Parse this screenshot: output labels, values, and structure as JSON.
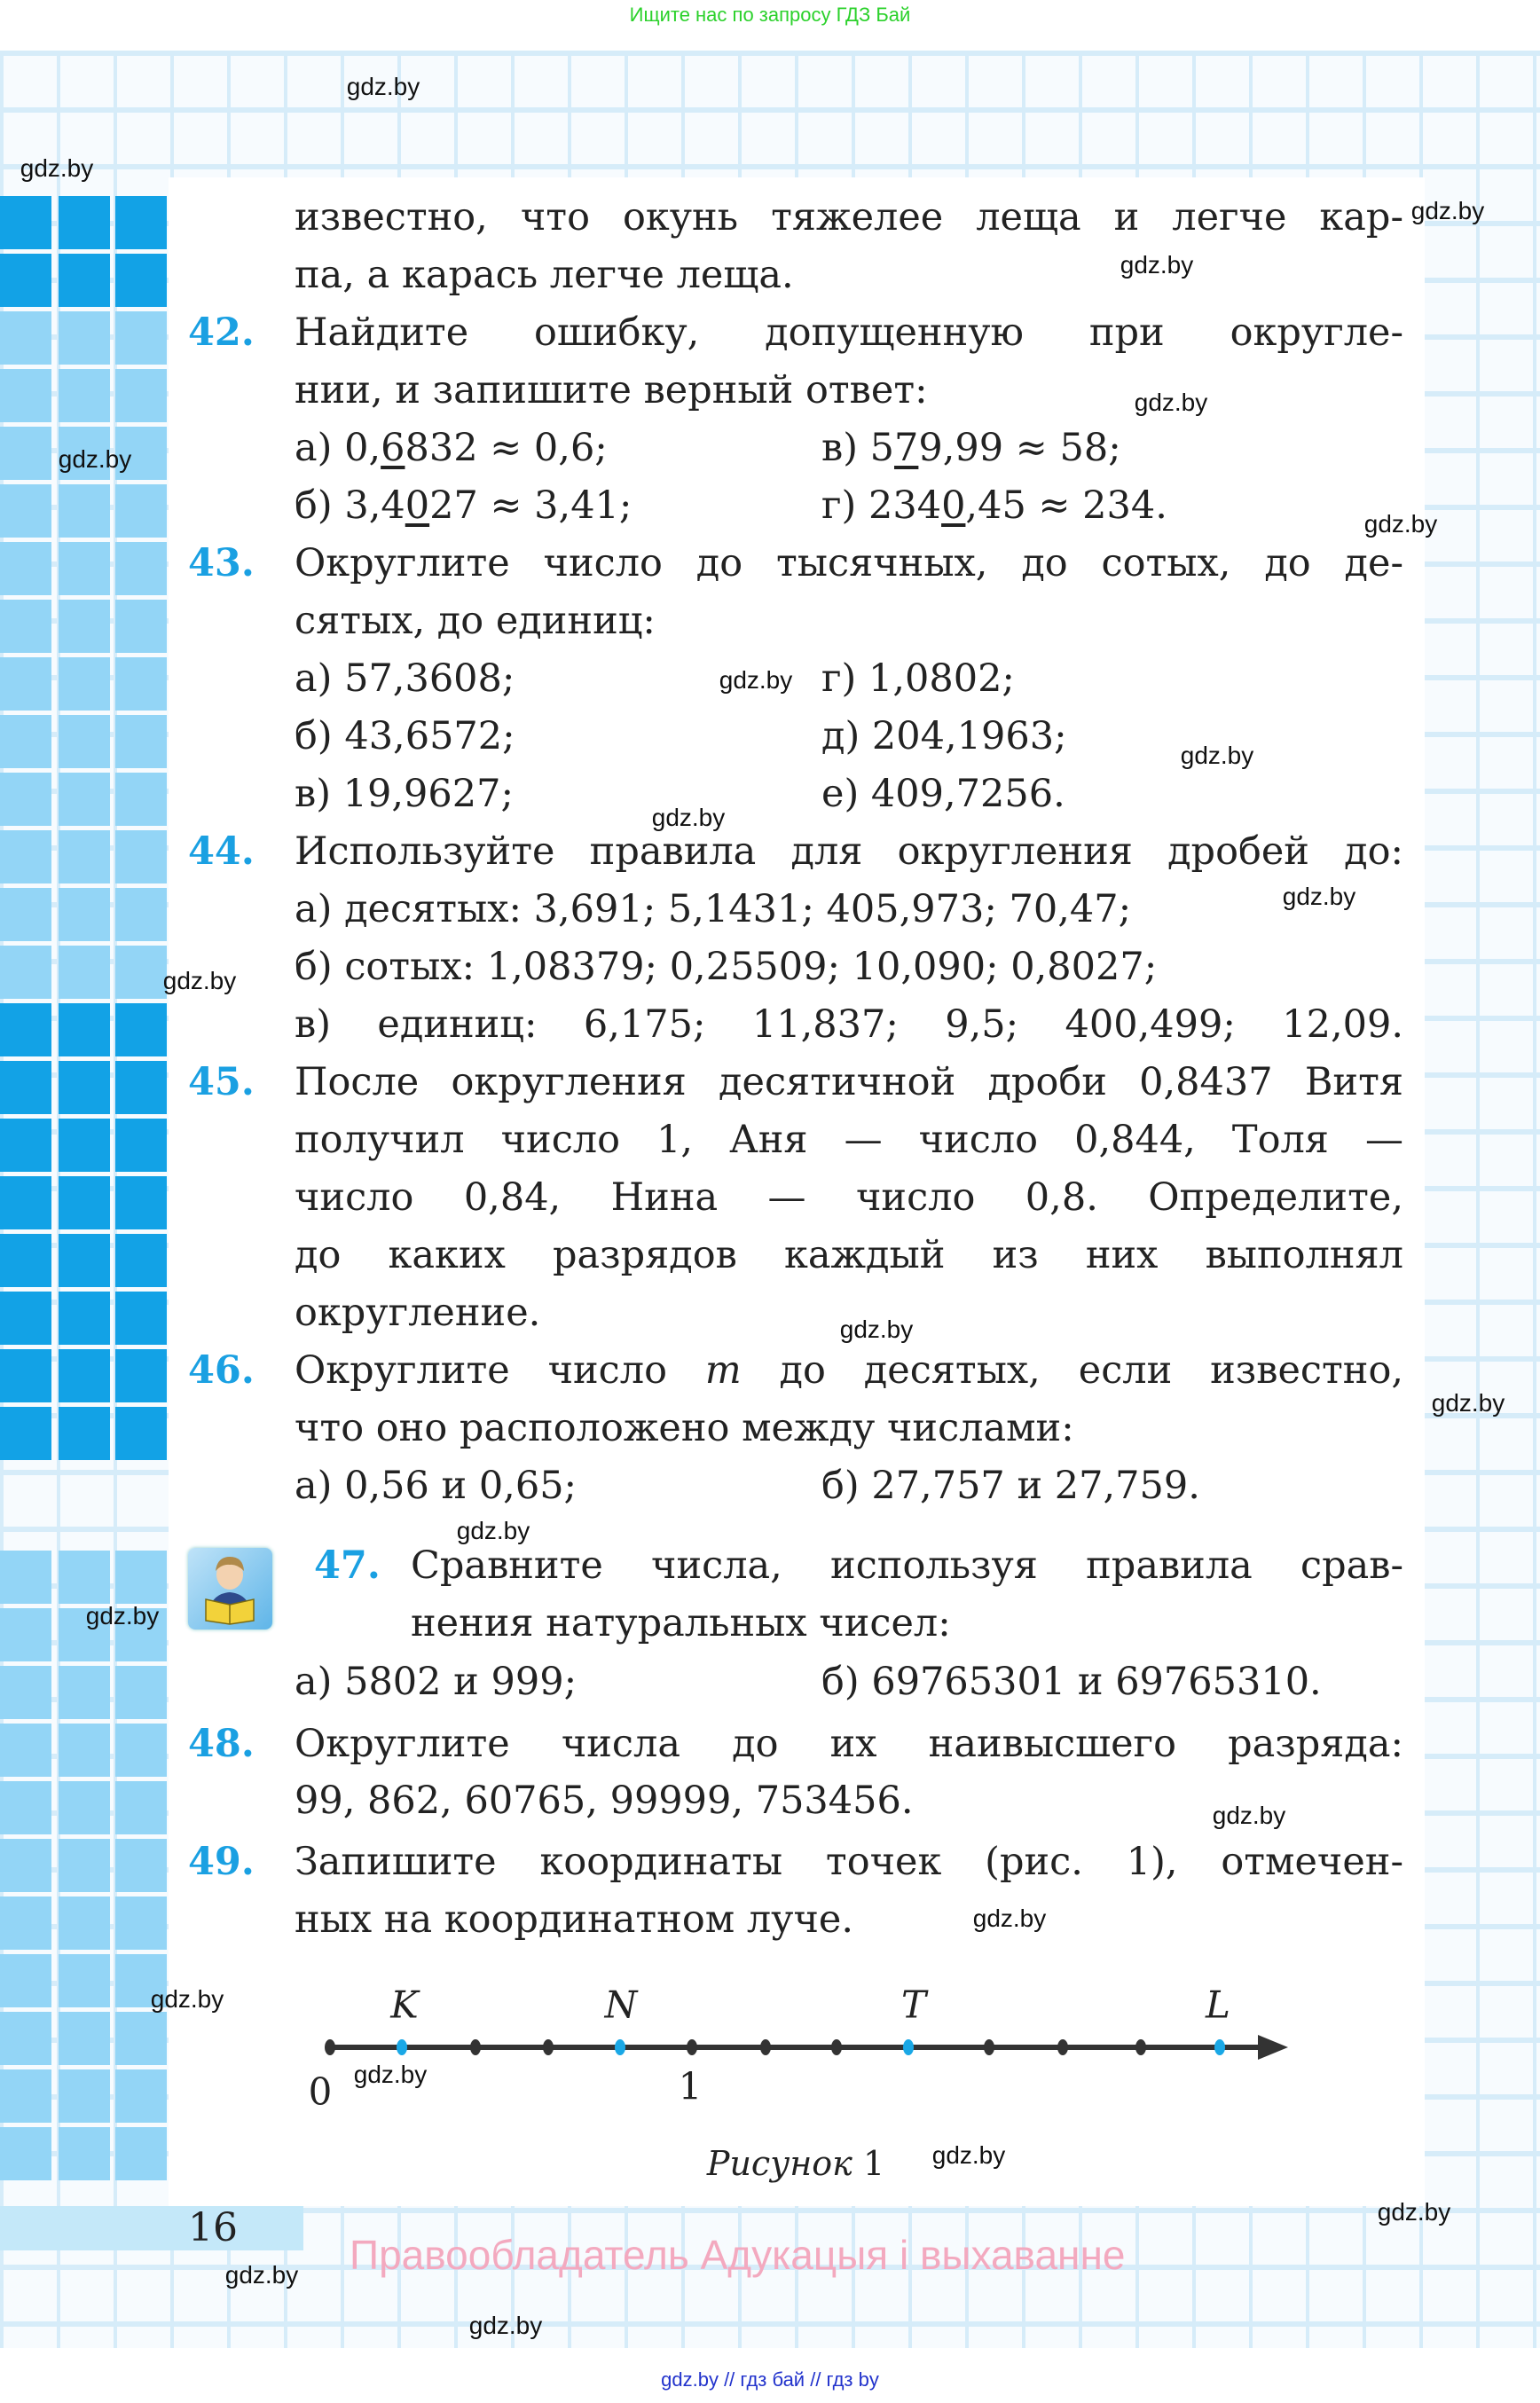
{
  "top_note": "Ищите нас по запросу ГДЗ Бай",
  "bottom_note": "gdz.by // гдз бай // гдз by",
  "watermark": "gdz.by",
  "page_number": "16",
  "copyright": "Правообладатель Адукацыя і выхаванне",
  "colors": {
    "accent": "#1aa0e2",
    "strip_dark": "#12a2e6",
    "strip_light": "#93d5f6",
    "copyright": "#f3a9bf",
    "top_note": "#2bd12b",
    "bottom_note": "#2233cc"
  },
  "p41": {
    "lines": [
      "известно, что окунь тяжелее леща и легче кар-",
      "па, а карась легче леща."
    ]
  },
  "p42": {
    "num": "42.",
    "lines": [
      "Найдите ошибку, допущенную при округле-",
      "нии, и запишите верный ответ:"
    ],
    "items": [
      {
        "label": "а)",
        "pre": "0,",
        "u": "6",
        "post": "832 ≈ 0,6;"
      },
      {
        "label": "в)",
        "pre": "5",
        "u": "7",
        "post": "9,99 ≈ 58;"
      },
      {
        "label": "б)",
        "pre": "3,4",
        "u": "0",
        "post": "27 ≈ 3,41;"
      },
      {
        "label": "г)",
        "pre": "234",
        "u": "0",
        "post": ",45 ≈ 234."
      }
    ]
  },
  "p43": {
    "num": "43.",
    "lines": [
      "Округлите число до тысячных, до сотых, до де-",
      "сятых, до единиц:"
    ],
    "items": [
      "а) 57,3608;",
      "г) 1,0802;",
      "б) 43,6572;",
      "д) 204,1963;",
      "в) 19,9627;",
      "е) 409,7256."
    ]
  },
  "p44": {
    "num": "44.",
    "lines": [
      "Используйте правила для округления дробей до:",
      "а) десятых: 3,691; 5,1431; 405,973; 70,47;",
      "б) сотых: 1,08379; 0,25509; 10,090; 0,8027;",
      "в) единиц: 6,175; 11,837; 9,5; 400,499; 12,09."
    ]
  },
  "p45": {
    "num": "45.",
    "lines": [
      "После округления десятичной дроби 0,8437 Витя",
      "получил число 1, Аня — число 0,844, Толя —",
      "число 0,84, Нина — число 0,8. Определите,",
      "до каких разрядов каждый из них выполнял",
      "округление."
    ]
  },
  "p46": {
    "num": "46.",
    "line1_pre": "Округлите число ",
    "line1_var": "m",
    "line1_post": " до десятых, если известно,",
    "line2": "что оно расположено между числами:",
    "items": [
      "а) 0,56 и 0,65;",
      "б) 27,757 и 27,759."
    ]
  },
  "p47": {
    "num": "47.",
    "icon": "boy-reading-book-icon",
    "lines": [
      "Сравните числа, используя правила срав-",
      "нения натуральных чисел:"
    ],
    "items": [
      "а) 5802 и 999;",
      "б) 69765301 и 69765310."
    ]
  },
  "p48": {
    "num": "48.",
    "lines": [
      "Округлите числа до их наивысшего разряда:",
      "99, 862, 60765, 99999, 753456."
    ]
  },
  "p49": {
    "num": "49.",
    "lines": [
      "Запишите координаты точек (рис. 1), отмечен-",
      "ных на координатном луче."
    ]
  },
  "figure": {
    "points": [
      "K",
      "N",
      "T",
      "L"
    ],
    "zero": "0",
    "one": "1",
    "caption_word": "Рисунок",
    "caption_num": "1"
  }
}
